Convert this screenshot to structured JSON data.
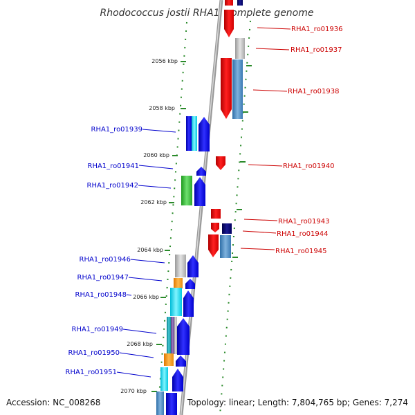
{
  "title": "Rhodococcus jostii RHA1, complete genome",
  "footer": {
    "accession": "Accession: NC_008268",
    "summary": "Topology: linear; Length: 7,804,765 bp; Genes: 7,274"
  },
  "colors": {
    "backbone": "#909090",
    "ruler": "#2a8a2a",
    "left_label": "#0000cc",
    "right_label": "#cc0000"
  },
  "kbp_ticks": [
    "2056 kbp",
    "2058 kbp",
    "2060 kbp",
    "2062 kbp",
    "2064 kbp",
    "2066 kbp",
    "2068 kbp",
    "2070 kbp"
  ],
  "left_genes": [
    "RHA1_ro01939",
    "RHA1_ro01941",
    "RHA1_ro01942",
    "RHA1_ro01946",
    "RHA1_ro01947",
    "RHA1_ro01948",
    "RHA1_ro01949",
    "RHA1_ro01950",
    "RHA1_ro01951"
  ],
  "right_genes": [
    "RHA1_ro01936",
    "RHA1_ro01937",
    "RHA1_ro01938",
    "RHA1_ro01940",
    "RHA1_ro01943",
    "RHA1_ro01944",
    "RHA1_ro01945"
  ]
}
